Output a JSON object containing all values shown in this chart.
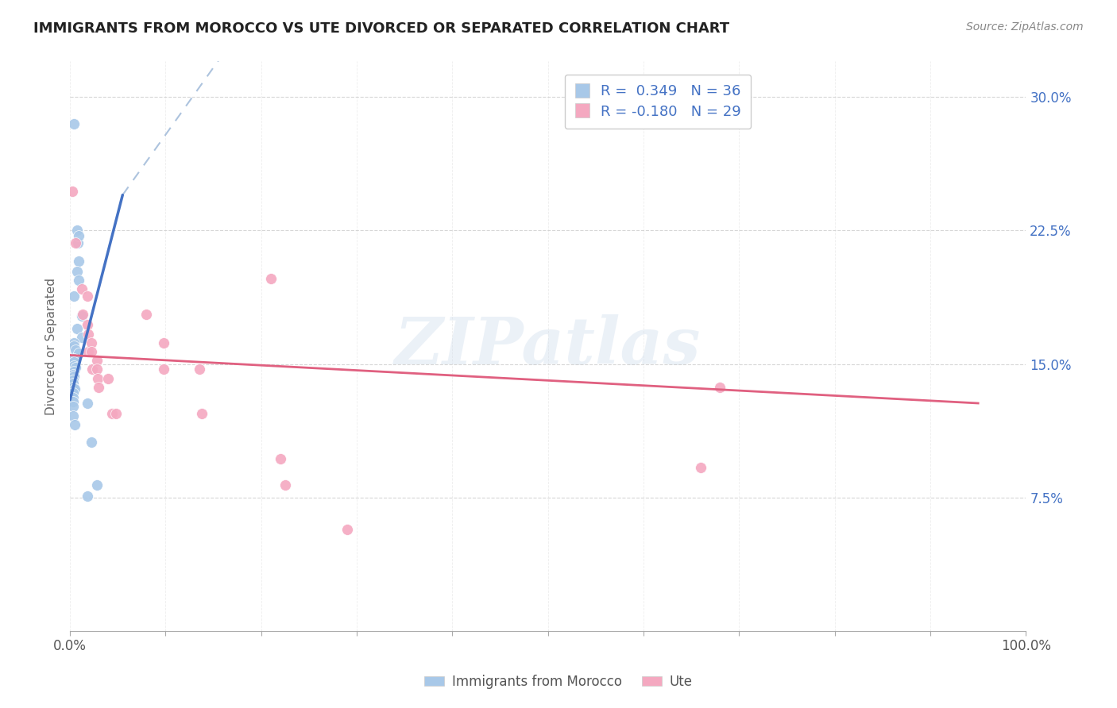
{
  "title": "IMMIGRANTS FROM MOROCCO VS UTE DIVORCED OR SEPARATED CORRELATION CHART",
  "source": "Source: ZipAtlas.com",
  "ylabel": "Divorced or Separated",
  "yticks": [
    "7.5%",
    "15.0%",
    "22.5%",
    "30.0%"
  ],
  "ytick_vals": [
    0.075,
    0.15,
    0.225,
    0.3
  ],
  "xlim": [
    0.0,
    1.0
  ],
  "ylim": [
    0.0,
    0.32
  ],
  "legend_label1": "R =  0.349   N = 36",
  "legend_label2": "R = -0.180   N = 29",
  "legend_footer1": "Immigrants from Morocco",
  "legend_footer2": "Ute",
  "color_blue": "#a8c8e8",
  "color_pink": "#f4a8c0",
  "watermark_text": "ZIPatlas",
  "blue_scatter": [
    [
      0.004,
      0.285
    ],
    [
      0.007,
      0.225
    ],
    [
      0.008,
      0.218
    ],
    [
      0.009,
      0.222
    ],
    [
      0.009,
      0.208
    ],
    [
      0.007,
      0.202
    ],
    [
      0.009,
      0.197
    ],
    [
      0.004,
      0.188
    ],
    [
      0.012,
      0.177
    ],
    [
      0.007,
      0.17
    ],
    [
      0.012,
      0.165
    ],
    [
      0.004,
      0.162
    ],
    [
      0.004,
      0.16
    ],
    [
      0.006,
      0.158
    ],
    [
      0.009,
      0.156
    ],
    [
      0.004,
      0.153
    ],
    [
      0.004,
      0.151
    ],
    [
      0.004,
      0.149
    ],
    [
      0.006,
      0.148
    ],
    [
      0.004,
      0.146
    ],
    [
      0.003,
      0.144
    ],
    [
      0.004,
      0.143
    ],
    [
      0.003,
      0.141
    ],
    [
      0.003,
      0.139
    ],
    [
      0.003,
      0.137
    ],
    [
      0.005,
      0.136
    ],
    [
      0.003,
      0.134
    ],
    [
      0.003,
      0.131
    ],
    [
      0.003,
      0.129
    ],
    [
      0.003,
      0.126
    ],
    [
      0.003,
      0.121
    ],
    [
      0.005,
      0.116
    ],
    [
      0.018,
      0.128
    ],
    [
      0.022,
      0.106
    ],
    [
      0.028,
      0.082
    ],
    [
      0.018,
      0.076
    ]
  ],
  "pink_scatter": [
    [
      0.002,
      0.247
    ],
    [
      0.006,
      0.218
    ],
    [
      0.012,
      0.192
    ],
    [
      0.013,
      0.178
    ],
    [
      0.018,
      0.188
    ],
    [
      0.018,
      0.172
    ],
    [
      0.019,
      0.167
    ],
    [
      0.019,
      0.157
    ],
    [
      0.022,
      0.162
    ],
    [
      0.022,
      0.157
    ],
    [
      0.023,
      0.147
    ],
    [
      0.028,
      0.152
    ],
    [
      0.028,
      0.147
    ],
    [
      0.029,
      0.142
    ],
    [
      0.03,
      0.137
    ],
    [
      0.04,
      0.142
    ],
    [
      0.044,
      0.122
    ],
    [
      0.048,
      0.122
    ],
    [
      0.08,
      0.178
    ],
    [
      0.098,
      0.162
    ],
    [
      0.098,
      0.147
    ],
    [
      0.135,
      0.147
    ],
    [
      0.138,
      0.122
    ],
    [
      0.21,
      0.198
    ],
    [
      0.22,
      0.097
    ],
    [
      0.225,
      0.082
    ],
    [
      0.29,
      0.057
    ],
    [
      0.66,
      0.092
    ],
    [
      0.68,
      0.137
    ]
  ],
  "blue_line_solid": [
    [
      0.0,
      0.13
    ],
    [
      0.055,
      0.245
    ]
  ],
  "blue_line_dashed": [
    [
      0.055,
      0.245
    ],
    [
      0.42,
      0.52
    ]
  ],
  "pink_line": [
    [
      0.0,
      0.155
    ],
    [
      0.95,
      0.128
    ]
  ],
  "R1": 0.349,
  "N1": 36,
  "R2": -0.18,
  "N2": 29
}
